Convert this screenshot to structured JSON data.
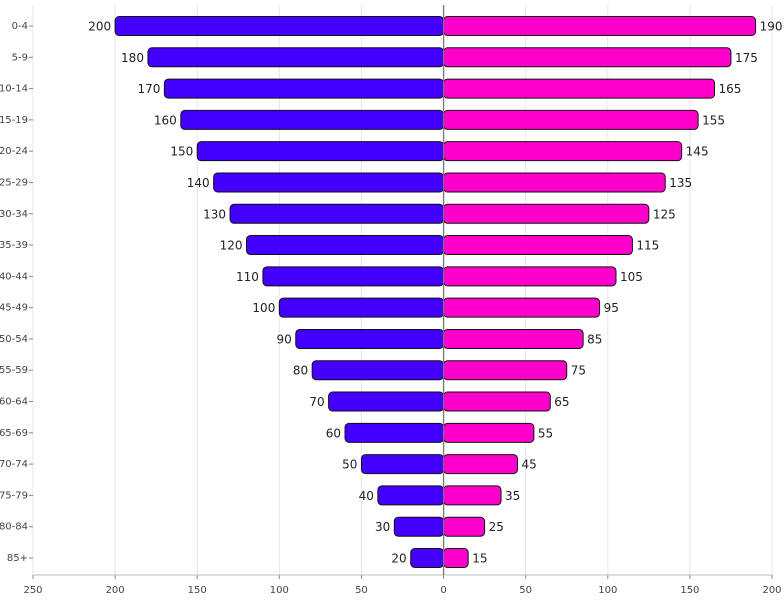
{
  "chart_data": {
    "type": "bar",
    "orientation": "horizontal",
    "categories": [
      "0-4",
      "5-9",
      "10-14",
      "15-19",
      "20-24",
      "25-29",
      "30-34",
      "35-39",
      "40-44",
      "45-49",
      "50-54",
      "55-59",
      "60-64",
      "65-69",
      "70-74",
      "75-79",
      "80-84",
      "85+"
    ],
    "series": [
      {
        "color": "#4400ff",
        "side": "left",
        "values": [
          200,
          180,
          170,
          160,
          150,
          140,
          130,
          120,
          110,
          100,
          90,
          80,
          70,
          60,
          50,
          40,
          30,
          20
        ]
      },
      {
        "color": "#ff00cc",
        "side": "right",
        "values": [
          190,
          175,
          165,
          155,
          145,
          135,
          125,
          115,
          105,
          95,
          85,
          75,
          65,
          55,
          45,
          35,
          25,
          15
        ]
      }
    ],
    "xlim": [
      -250,
      200
    ],
    "xticks": [
      {
        "value": -250,
        "label": "250"
      },
      {
        "value": -200,
        "label": "200"
      },
      {
        "value": -150,
        "label": "150"
      },
      {
        "value": -100,
        "label": "100"
      },
      {
        "value": -50,
        "label": "50"
      },
      0,
      50,
      100,
      150,
      200
    ],
    "grid": true
  }
}
